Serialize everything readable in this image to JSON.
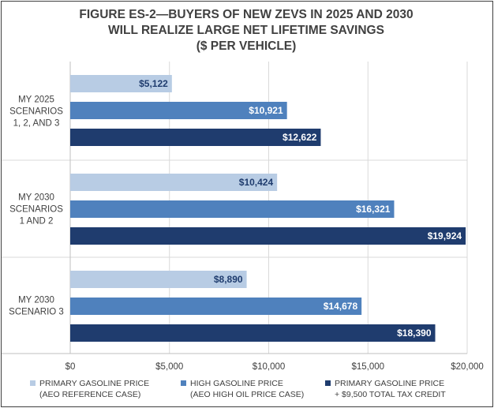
{
  "colors": {
    "light": "#b8cce4",
    "mid": "#4f81bd",
    "dark": "#1f3c6e",
    "grid": "#d9d9d9",
    "text": "#404040"
  },
  "chart_data": {
    "type": "bar",
    "orientation": "horizontal",
    "title_lines": [
      "FIGURE ES-2—BUYERS OF NEW ZEVS IN 2025 AND 2030",
      "WILL REALIZE LARGE NET LIFETIME SAVINGS",
      "($ PER VEHICLE)"
    ],
    "categories": [
      [
        "MY 2025",
        "SCENARIOS",
        "1, 2, AND 3"
      ],
      [
        "MY 2030",
        "SCENARIOS",
        "1 AND 2"
      ],
      [
        "MY 2030",
        "SCENARIO 3"
      ]
    ],
    "series": [
      {
        "name_lines": [
          "PRIMARY GASOLINE PRICE",
          "(AEO REFERENCE CASE)"
        ],
        "color_key": "light",
        "values": [
          5122,
          10424,
          8890
        ],
        "labels": [
          "$5,122",
          "$10,424",
          "$8,890"
        ]
      },
      {
        "name_lines": [
          "HIGH GASOLINE PRICE",
          "(AEO HIGH OIL PRICE CASE)"
        ],
        "color_key": "mid",
        "values": [
          10921,
          16321,
          14678
        ],
        "labels": [
          "$10,921",
          "$16,321",
          "$14,678"
        ]
      },
      {
        "name_lines": [
          "PRIMARY GASOLINE PRICE",
          "+ $9,500 TOTAL TAX CREDIT"
        ],
        "color_key": "dark",
        "values": [
          12622,
          19924,
          18390
        ],
        "labels": [
          "$12,622",
          "$19,924",
          "$18,390"
        ]
      }
    ],
    "xlim": [
      0,
      20000
    ],
    "xticks": [
      0,
      5000,
      10000,
      15000,
      20000
    ],
    "xtick_labels": [
      "$0",
      "$5,000",
      "$10,000",
      "$15,000",
      "$20,000"
    ],
    "grid": true,
    "legend_position": "bottom"
  }
}
